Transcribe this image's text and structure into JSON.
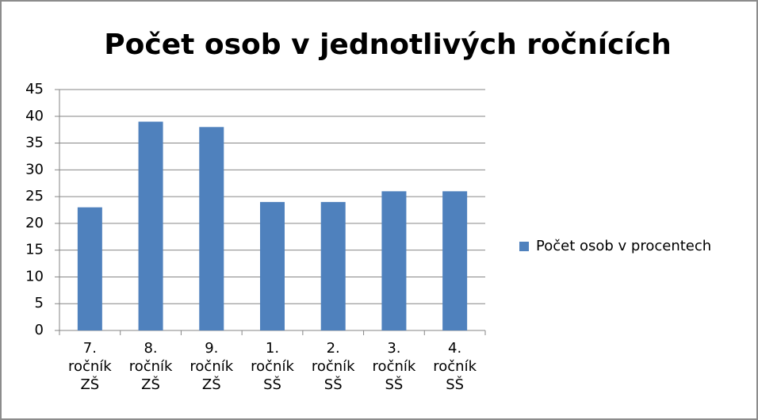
{
  "chart_data": {
    "type": "bar",
    "title": "Počet osob v jednotlivých ročnících",
    "categories": [
      "7. ročník ZŠ",
      "8. ročník ZŠ",
      "9. ročník ZŠ",
      "1. ročník SŠ",
      "2. ročník SŠ",
      "3. ročník SŠ",
      "4. ročník SŠ"
    ],
    "series": [
      {
        "name": "Počet osob v procentech",
        "color": "#4f81bd",
        "values": [
          23,
          39,
          38,
          24,
          24,
          26,
          26
        ]
      }
    ],
    "ylim": [
      0,
      45
    ],
    "yticks": [
      0,
      5,
      10,
      15,
      20,
      25,
      30,
      35,
      40,
      45
    ],
    "grid": true,
    "legend": "right"
  }
}
